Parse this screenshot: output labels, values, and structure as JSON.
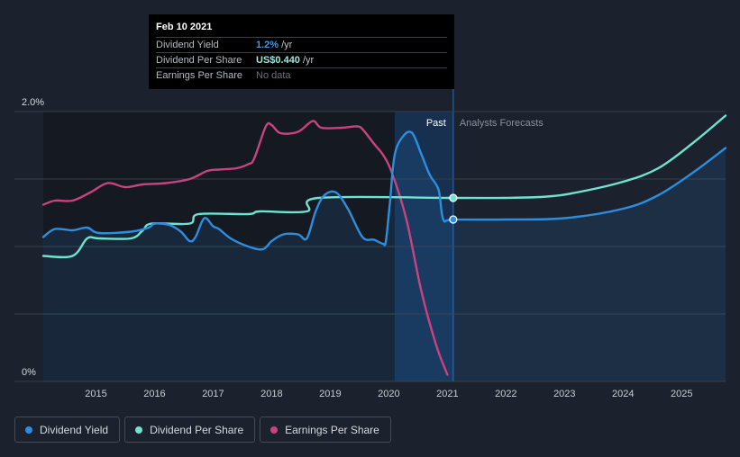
{
  "tooltip": {
    "date": "Feb 10 2021",
    "rows": [
      {
        "label": "Dividend Yield",
        "value": "1.2%",
        "unit": "/yr"
      },
      {
        "label": "Dividend Per Share",
        "value": "US$0.440",
        "unit": "/yr"
      },
      {
        "label": "Earnings Per Share",
        "value": "No data",
        "unit": ""
      }
    ]
  },
  "legend": [
    {
      "label": "Dividend Yield",
      "color": "#2d8ee0"
    },
    {
      "label": "Dividend Per Share",
      "color": "#6fe3cf"
    },
    {
      "label": "Earnings Per Share",
      "color": "#c8437f"
    }
  ],
  "chart_data": {
    "type": "line",
    "x_ticks": [
      "2015",
      "2016",
      "2017",
      "2018",
      "2019",
      "2020",
      "2021",
      "2022",
      "2023",
      "2024",
      "2025"
    ],
    "y_ticks": [
      "2.0%",
      "0%"
    ],
    "ylim": [
      0,
      2.0
    ],
    "xlim": [
      2014.1,
      2025.75
    ],
    "regions": {
      "past_label": "Past",
      "forecast_label": "Analysts Forecasts",
      "divider_x": 2021.1,
      "highlight_start_x": 2020.1
    },
    "series": [
      {
        "name": "Dividend Yield",
        "color": "#2d8ee0",
        "points": [
          [
            2014.1,
            1.07
          ],
          [
            2014.3,
            1.13
          ],
          [
            2014.6,
            1.12
          ],
          [
            2014.85,
            1.14
          ],
          [
            2015.05,
            1.1
          ],
          [
            2015.6,
            1.11
          ],
          [
            2015.9,
            1.14
          ],
          [
            2016.0,
            1.17
          ],
          [
            2016.25,
            1.16
          ],
          [
            2016.45,
            1.11
          ],
          [
            2016.6,
            1.04
          ],
          [
            2016.7,
            1.07
          ],
          [
            2016.85,
            1.21
          ],
          [
            2017.0,
            1.15
          ],
          [
            2017.1,
            1.13
          ],
          [
            2017.3,
            1.06
          ],
          [
            2017.6,
            1.0
          ],
          [
            2017.85,
            0.98
          ],
          [
            2018.0,
            1.04
          ],
          [
            2018.2,
            1.09
          ],
          [
            2018.45,
            1.09
          ],
          [
            2018.6,
            1.06
          ],
          [
            2018.75,
            1.26
          ],
          [
            2018.9,
            1.38
          ],
          [
            2019.1,
            1.4
          ],
          [
            2019.3,
            1.28
          ],
          [
            2019.55,
            1.07
          ],
          [
            2019.75,
            1.05
          ],
          [
            2019.9,
            1.02
          ],
          [
            2019.95,
            1.04
          ],
          [
            2020.02,
            1.33
          ],
          [
            2020.1,
            1.68
          ],
          [
            2020.25,
            1.82
          ],
          [
            2020.4,
            1.84
          ],
          [
            2020.55,
            1.69
          ],
          [
            2020.7,
            1.53
          ],
          [
            2020.85,
            1.42
          ],
          [
            2020.93,
            1.2
          ],
          [
            2021.1,
            1.2
          ],
          [
            2022.0,
            1.2
          ],
          [
            2023.0,
            1.21
          ],
          [
            2024.0,
            1.28
          ],
          [
            2024.6,
            1.38
          ],
          [
            2025.2,
            1.55
          ],
          [
            2025.75,
            1.73
          ]
        ]
      },
      {
        "name": "Dividend Per Share",
        "color": "#6fe3cf",
        "points": [
          [
            2014.1,
            0.93
          ],
          [
            2014.6,
            0.93
          ],
          [
            2014.85,
            1.06
          ],
          [
            2015.05,
            1.06
          ],
          [
            2015.6,
            1.06
          ],
          [
            2015.8,
            1.12
          ],
          [
            2015.95,
            1.17
          ],
          [
            2016.6,
            1.17
          ],
          [
            2016.75,
            1.24
          ],
          [
            2017.6,
            1.24
          ],
          [
            2017.8,
            1.26
          ],
          [
            2018.6,
            1.26
          ],
          [
            2018.8,
            1.36
          ],
          [
            2021.1,
            1.36
          ],
          [
            2022.0,
            1.36
          ],
          [
            2022.7,
            1.37
          ],
          [
            2023.2,
            1.4
          ],
          [
            2024.0,
            1.48
          ],
          [
            2024.6,
            1.58
          ],
          [
            2025.2,
            1.77
          ],
          [
            2025.75,
            1.97
          ]
        ]
      },
      {
        "name": "Earnings Per Share",
        "color": "#c8437f",
        "points": [
          [
            2014.1,
            1.31
          ],
          [
            2014.3,
            1.34
          ],
          [
            2014.6,
            1.34
          ],
          [
            2014.9,
            1.4
          ],
          [
            2015.2,
            1.47
          ],
          [
            2015.5,
            1.44
          ],
          [
            2015.8,
            1.46
          ],
          [
            2016.2,
            1.47
          ],
          [
            2016.6,
            1.5
          ],
          [
            2016.9,
            1.56
          ],
          [
            2017.1,
            1.57
          ],
          [
            2017.4,
            1.58
          ],
          [
            2017.6,
            1.61
          ],
          [
            2017.7,
            1.65
          ],
          [
            2017.9,
            1.89
          ],
          [
            2018.0,
            1.9
          ],
          [
            2018.15,
            1.84
          ],
          [
            2018.45,
            1.85
          ],
          [
            2018.7,
            1.93
          ],
          [
            2018.85,
            1.88
          ],
          [
            2019.2,
            1.88
          ],
          [
            2019.45,
            1.89
          ],
          [
            2019.55,
            1.87
          ],
          [
            2019.75,
            1.76
          ],
          [
            2019.9,
            1.68
          ],
          [
            2020.05,
            1.55
          ],
          [
            2020.3,
            1.2
          ],
          [
            2020.55,
            0.68
          ],
          [
            2020.8,
            0.28
          ],
          [
            2021.0,
            0.05
          ]
        ]
      }
    ],
    "markers": [
      {
        "series": "Dividend Per Share",
        "x": 2021.1,
        "y": 1.36
      },
      {
        "series": "Dividend Yield",
        "x": 2021.1,
        "y": 1.2
      }
    ]
  }
}
